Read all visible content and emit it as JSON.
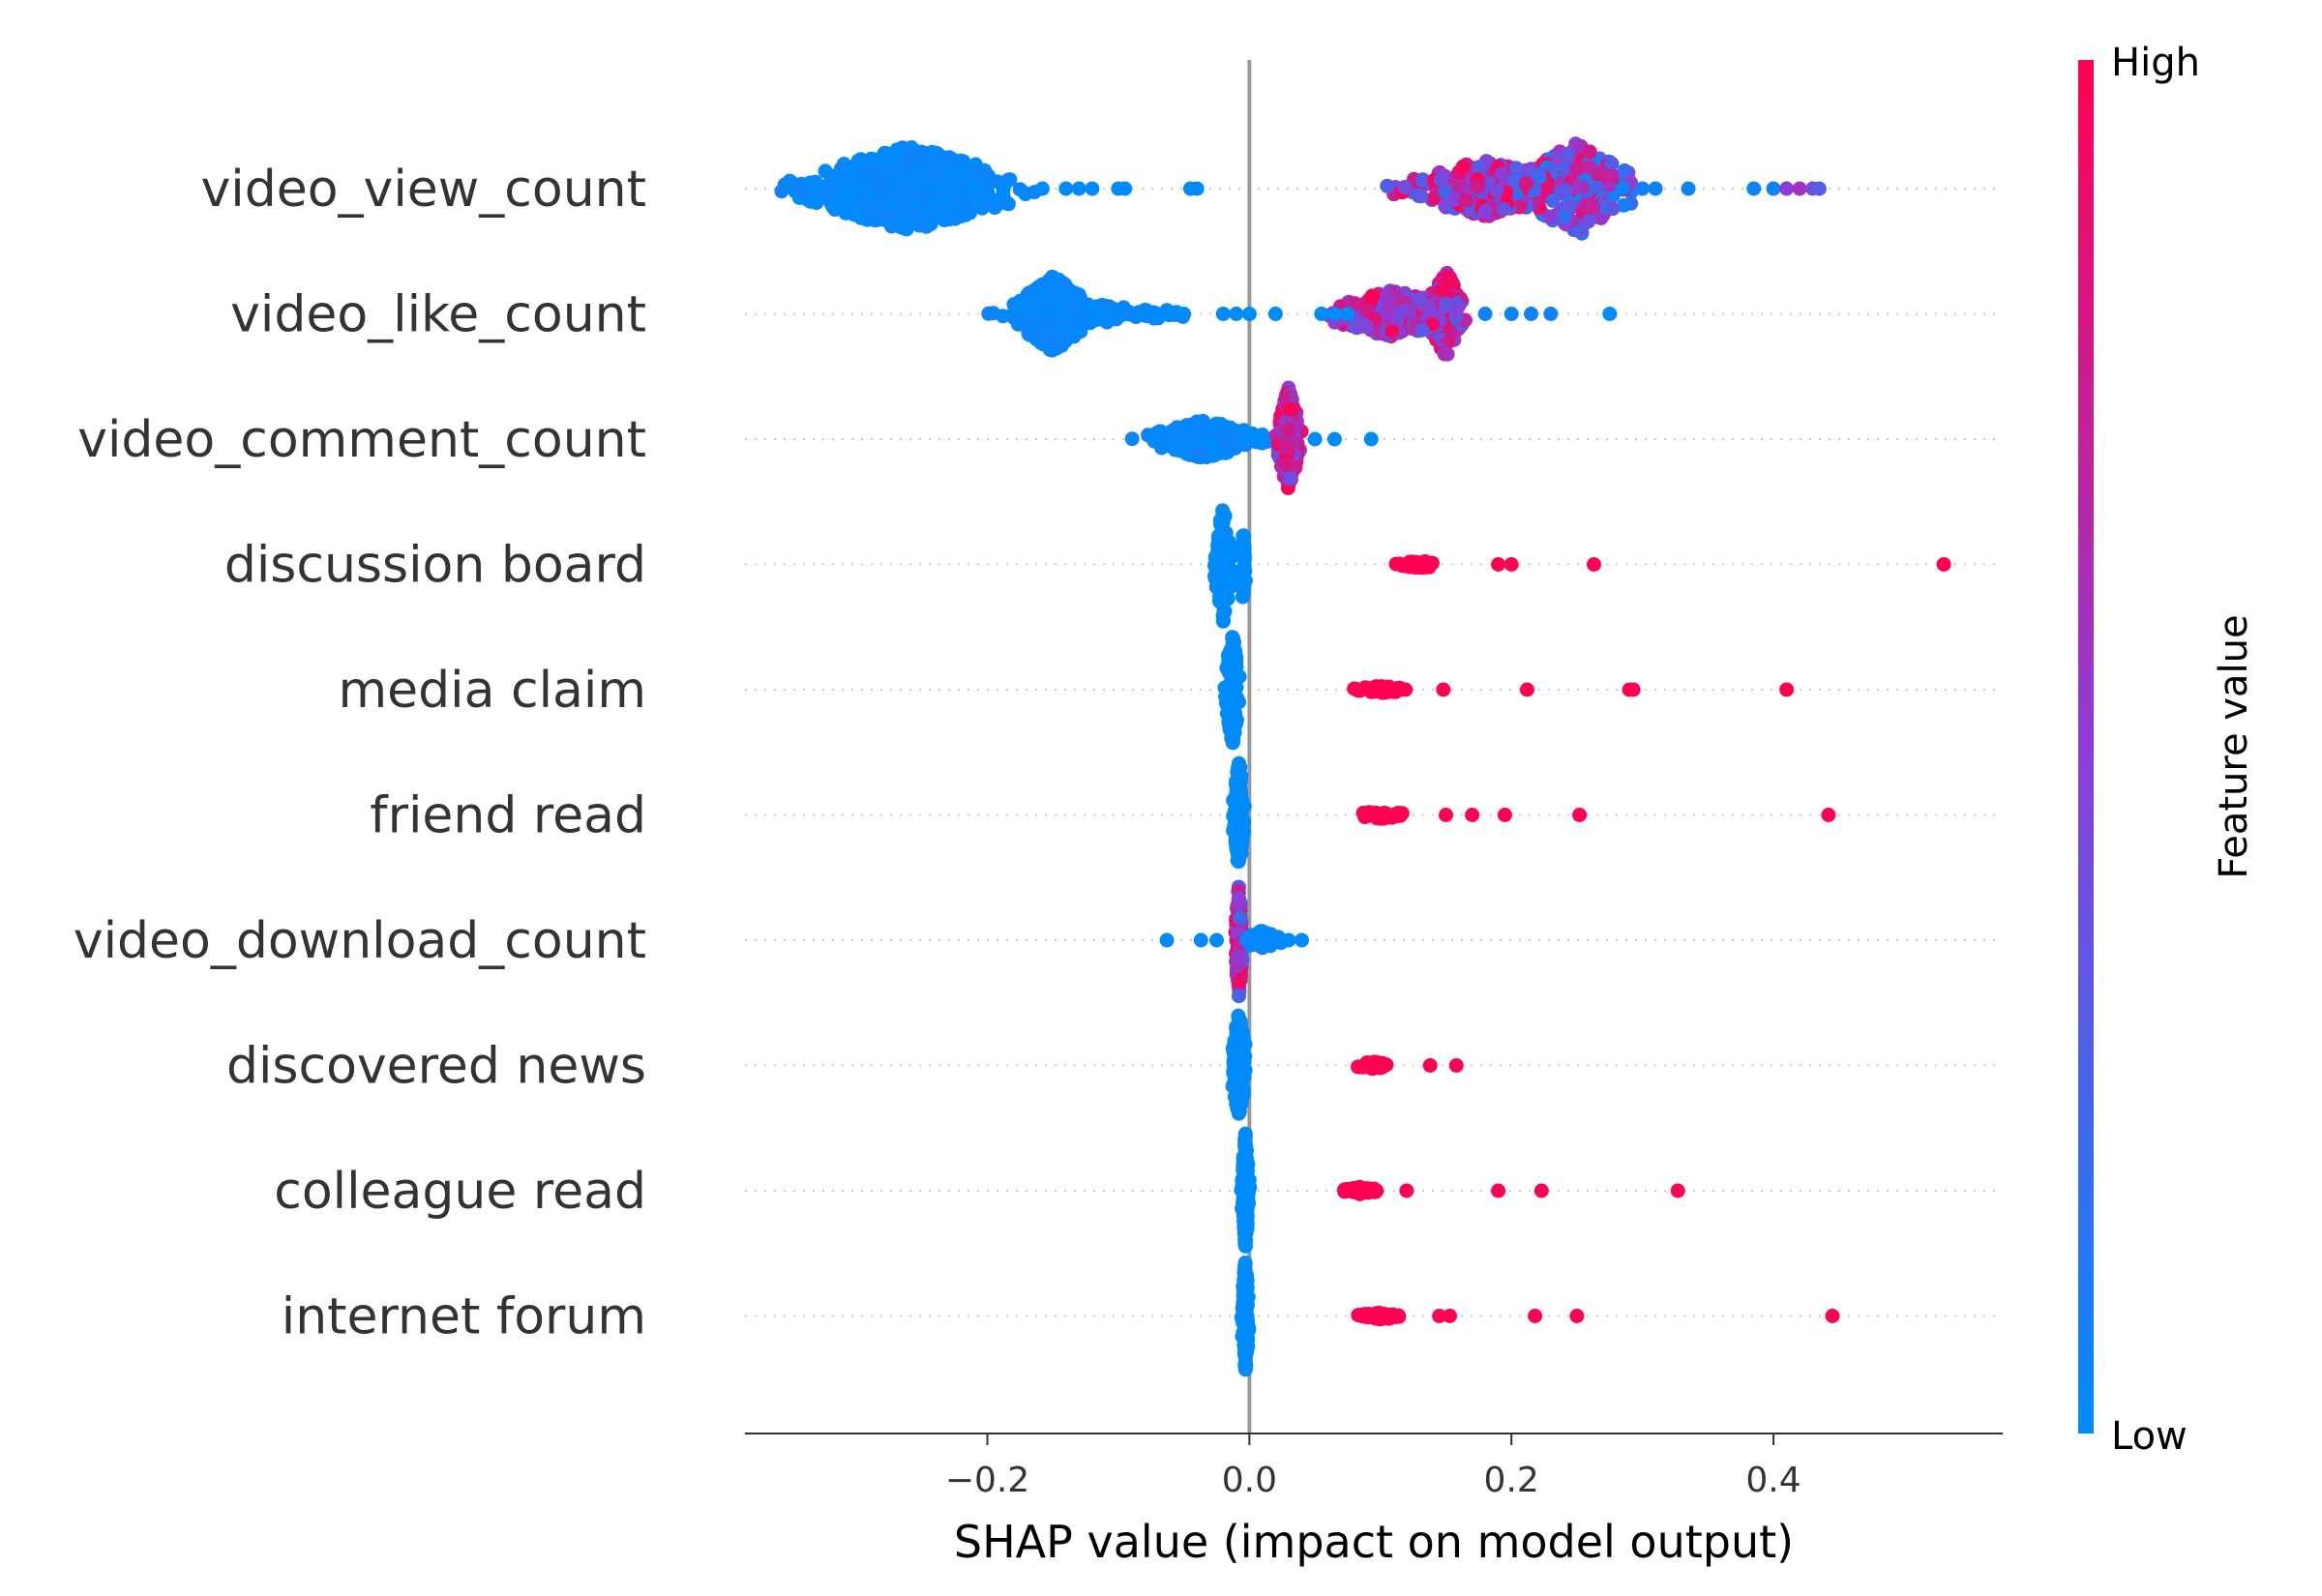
{
  "chart_data": {
    "type": "scatter",
    "subtype": "shap-beeswarm",
    "xlabel": "SHAP value (impact on model output)",
    "xlim": [
      -0.385,
      0.575
    ],
    "xticks": [
      {
        "value": -0.2,
        "label": "−0.2"
      },
      {
        "value": 0.0,
        "label": "0.0"
      },
      {
        "value": 0.2,
        "label": "0.2"
      },
      {
        "value": 0.4,
        "label": "0.4"
      }
    ],
    "zero_line": true,
    "colorbar": {
      "label": "Feature value",
      "high": "High",
      "low": "Low",
      "high_color": "#ff0052",
      "mid_color": "#8d3dd6",
      "low_color": "#008bfb"
    },
    "features": [
      {
        "name": "video_view_count",
        "clusters": [
          {
            "center": -0.26,
            "spread": 0.06,
            "count": 520,
            "width": 0.045,
            "value_range": [
              0.0,
              0.05
            ]
          },
          {
            "center": -0.31,
            "spread": 0.035,
            "count": 60,
            "width": 0.01,
            "value_range": [
              0.0,
              0.05
            ]
          },
          {
            "center": 0.25,
            "spread": 0.03,
            "count": 200,
            "width": 0.05,
            "value_range": [
              0.0,
              1.0
            ]
          },
          {
            "center": 0.18,
            "spread": 0.045,
            "count": 280,
            "width": 0.03,
            "value_range": [
              0.2,
              1.0
            ]
          }
        ],
        "points": [
          {
            "x": -0.225,
            "v": 0.0
          },
          {
            "x": -0.158,
            "v": 0.0
          },
          {
            "x": -0.14,
            "v": 0.0
          },
          {
            "x": -0.13,
            "v": 0.0
          },
          {
            "x": -0.12,
            "v": 0.0
          },
          {
            "x": -0.1,
            "v": 0.0
          },
          {
            "x": -0.095,
            "v": 0.0
          },
          {
            "x": -0.045,
            "v": 0.0
          },
          {
            "x": -0.04,
            "v": 0.0
          },
          {
            "x": 0.285,
            "v": 0.05
          },
          {
            "x": 0.3,
            "v": 0.05
          },
          {
            "x": 0.31,
            "v": 0.05
          },
          {
            "x": 0.335,
            "v": 0.05
          },
          {
            "x": 0.385,
            "v": 0.05
          },
          {
            "x": 0.4,
            "v": 0.05
          },
          {
            "x": 0.41,
            "v": 0.5
          },
          {
            "x": 0.42,
            "v": 0.6
          },
          {
            "x": 0.43,
            "v": 0.4
          },
          {
            "x": 0.435,
            "v": 0.3
          }
        ]
      },
      {
        "name": "video_like_count",
        "clusters": [
          {
            "center": -0.15,
            "spread": 0.02,
            "count": 420,
            "width": 0.04,
            "value_range": [
              0.0,
              0.05
            ]
          },
          {
            "center": -0.12,
            "spread": 0.05,
            "count": 120,
            "width": 0.01,
            "value_range": [
              0.0,
              0.05
            ]
          },
          {
            "center": 0.15,
            "spread": 0.01,
            "count": 160,
            "width": 0.045,
            "value_range": [
              0.2,
              1.0
            ]
          },
          {
            "center": 0.11,
            "spread": 0.035,
            "count": 260,
            "width": 0.025,
            "value_range": [
              0.3,
              1.0
            ]
          }
        ],
        "points": [
          {
            "x": -0.07,
            "v": 0.0
          },
          {
            "x": -0.06,
            "v": 0.0
          },
          {
            "x": -0.05,
            "v": 0.0
          },
          {
            "x": -0.02,
            "v": 0.0
          },
          {
            "x": -0.01,
            "v": 0.0
          },
          {
            "x": 0.0,
            "v": 0.0
          },
          {
            "x": 0.02,
            "v": 0.0
          },
          {
            "x": 0.055,
            "v": 0.0
          },
          {
            "x": 0.065,
            "v": 0.0
          },
          {
            "x": 0.075,
            "v": 0.0
          },
          {
            "x": 0.18,
            "v": 0.05
          },
          {
            "x": 0.2,
            "v": 0.05
          },
          {
            "x": 0.215,
            "v": 0.05
          },
          {
            "x": 0.23,
            "v": 0.05
          },
          {
            "x": 0.275,
            "v": 0.0
          }
        ]
      },
      {
        "name": "video_comment_count",
        "clusters": [
          {
            "center": -0.035,
            "spread": 0.03,
            "count": 200,
            "width": 0.02,
            "value_range": [
              0.0,
              0.05
            ]
          },
          {
            "center": 0.03,
            "spread": 0.006,
            "count": 220,
            "width": 0.055,
            "value_range": [
              0.3,
              1.0
            ]
          }
        ],
        "points": [
          {
            "x": 0.0,
            "v": 0.0
          },
          {
            "x": 0.01,
            "v": 0.0
          },
          {
            "x": 0.05,
            "v": 0.0
          },
          {
            "x": 0.065,
            "v": 0.0
          },
          {
            "x": 0.093,
            "v": 0.0
          }
        ]
      },
      {
        "name": "discussion board",
        "clusters": [
          {
            "center": -0.02,
            "spread": 0.005,
            "count": 140,
            "width": 0.06,
            "value_range": [
              0.0,
              0.0
            ]
          },
          {
            "center": -0.005,
            "spread": 0.002,
            "count": 30,
            "width": 0.035,
            "value_range": [
              0.0,
              0.0
            ]
          },
          {
            "center": 0.13,
            "spread": 0.012,
            "count": 40,
            "width": 0.004,
            "value_range": [
              1.0,
              1.0
            ]
          }
        ],
        "points": [
          {
            "x": 0.19,
            "v": 1.0
          },
          {
            "x": 0.2,
            "v": 1.0
          },
          {
            "x": 0.263,
            "v": 1.0
          },
          {
            "x": 0.53,
            "v": 1.0
          }
        ]
      },
      {
        "name": "media claim",
        "clusters": [
          {
            "center": -0.013,
            "spread": 0.004,
            "count": 140,
            "width": 0.06,
            "value_range": [
              0.0,
              0.0
            ]
          },
          {
            "center": 0.1,
            "spread": 0.015,
            "count": 40,
            "width": 0.004,
            "value_range": [
              1.0,
              1.0
            ]
          }
        ],
        "points": [
          {
            "x": 0.148,
            "v": 1.0
          },
          {
            "x": 0.212,
            "v": 1.0
          },
          {
            "x": 0.29,
            "v": 1.0
          },
          {
            "x": 0.293,
            "v": 1.0
          },
          {
            "x": 0.41,
            "v": 1.0
          }
        ]
      },
      {
        "name": "friend read",
        "clusters": [
          {
            "center": -0.008,
            "spread": 0.003,
            "count": 150,
            "width": 0.06,
            "value_range": [
              0.0,
              0.0
            ]
          },
          {
            "center": 0.1,
            "spread": 0.015,
            "count": 40,
            "width": 0.004,
            "value_range": [
              1.0,
              1.0
            ]
          }
        ],
        "points": [
          {
            "x": 0.15,
            "v": 1.0
          },
          {
            "x": 0.17,
            "v": 1.0
          },
          {
            "x": 0.195,
            "v": 1.0
          },
          {
            "x": 0.252,
            "v": 1.0
          },
          {
            "x": 0.442,
            "v": 1.0
          }
        ]
      },
      {
        "name": "video_download_count",
        "clusters": [
          {
            "center": -0.008,
            "spread": 0.002,
            "count": 120,
            "width": 0.06,
            "value_range": [
              0.2,
              1.0
            ]
          },
          {
            "center": 0.01,
            "spread": 0.01,
            "count": 40,
            "width": 0.01,
            "value_range": [
              0.0,
              0.05
            ]
          }
        ],
        "points": [
          {
            "x": -0.063,
            "v": 0.0
          },
          {
            "x": -0.037,
            "v": 0.0
          },
          {
            "x": -0.025,
            "v": 0.0
          },
          {
            "x": 0.03,
            "v": 0.0
          },
          {
            "x": 0.04,
            "v": 0.0
          }
        ]
      },
      {
        "name": "discovered news",
        "clusters": [
          {
            "center": -0.008,
            "spread": 0.004,
            "count": 140,
            "width": 0.055,
            "value_range": [
              0.0,
              0.0
            ]
          },
          {
            "center": 0.095,
            "spread": 0.01,
            "count": 30,
            "width": 0.004,
            "value_range": [
              1.0,
              1.0
            ]
          }
        ],
        "points": [
          {
            "x": 0.138,
            "v": 1.0
          },
          {
            "x": 0.158,
            "v": 1.0
          }
        ]
      },
      {
        "name": "colleague read",
        "clusters": [
          {
            "center": -0.003,
            "spread": 0.002,
            "count": 150,
            "width": 0.06,
            "value_range": [
              0.0,
              0.0
            ]
          },
          {
            "center": 0.085,
            "spread": 0.012,
            "count": 40,
            "width": 0.004,
            "value_range": [
              1.0,
              1.0
            ]
          }
        ],
        "points": [
          {
            "x": 0.12,
            "v": 1.0
          },
          {
            "x": 0.19,
            "v": 1.0
          },
          {
            "x": 0.223,
            "v": 1.0
          },
          {
            "x": 0.327,
            "v": 1.0
          }
        ]
      },
      {
        "name": "internet forum",
        "clusters": [
          {
            "center": -0.003,
            "spread": 0.002,
            "count": 150,
            "width": 0.06,
            "value_range": [
              0.0,
              0.0
            ]
          },
          {
            "center": 0.1,
            "spread": 0.012,
            "count": 40,
            "width": 0.004,
            "value_range": [
              1.0,
              1.0
            ]
          }
        ],
        "points": [
          {
            "x": 0.145,
            "v": 1.0
          },
          {
            "x": 0.153,
            "v": 1.0
          },
          {
            "x": 0.218,
            "v": 1.0
          },
          {
            "x": 0.25,
            "v": 1.0
          },
          {
            "x": 0.445,
            "v": 1.0
          }
        ]
      }
    ]
  }
}
